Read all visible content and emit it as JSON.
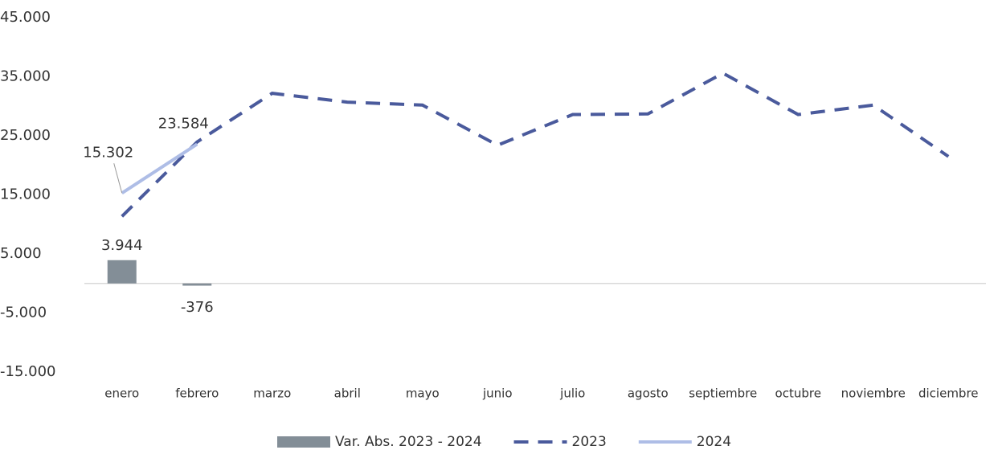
{
  "chart_data": {
    "type": "combo",
    "categories": [
      "enero",
      "febrero",
      "marzo",
      "abril",
      "mayo",
      "junio",
      "julio",
      "agosto",
      "septiembre",
      "octubre",
      "noviembre",
      "diciembre"
    ],
    "series": [
      {
        "name": "Var. Abs. 2023 - 2024",
        "type": "bar",
        "color": "#838e97",
        "values": [
          3944,
          -376,
          null,
          null,
          null,
          null,
          null,
          null,
          null,
          null,
          null,
          null
        ],
        "value_labels": [
          "3.944",
          "-376",
          null,
          null,
          null,
          null,
          null,
          null,
          null,
          null,
          null,
          null
        ]
      },
      {
        "name": "2023",
        "type": "line",
        "dashed": true,
        "color": "#4a5a9c",
        "values": [
          11358,
          23960,
          32200,
          30700,
          30200,
          23400,
          28600,
          28700,
          35600,
          28600,
          30200,
          21500
        ]
      },
      {
        "name": "2024",
        "type": "line",
        "dashed": false,
        "color": "#aebde6",
        "values": [
          15302,
          23584,
          null,
          null,
          null,
          null,
          null,
          null,
          null,
          null,
          null,
          null
        ],
        "value_labels": [
          "15.302",
          "23.584",
          null,
          null,
          null,
          null,
          null,
          null,
          null,
          null,
          null,
          null
        ]
      }
    ],
    "ylim": [
      -15000,
      45000
    ],
    "yticks": [
      {
        "value": -15000,
        "label": "-15.000"
      },
      {
        "value": -5000,
        "label": "-5.000"
      },
      {
        "value": 5000,
        "label": "5.000"
      },
      {
        "value": 15000,
        "label": "15.000"
      },
      {
        "value": 25000,
        "label": "25.000"
      },
      {
        "value": 35000,
        "label": "35.000"
      },
      {
        "value": 45000,
        "label": "45.000"
      }
    ],
    "grid": false,
    "legend": "bottom"
  }
}
